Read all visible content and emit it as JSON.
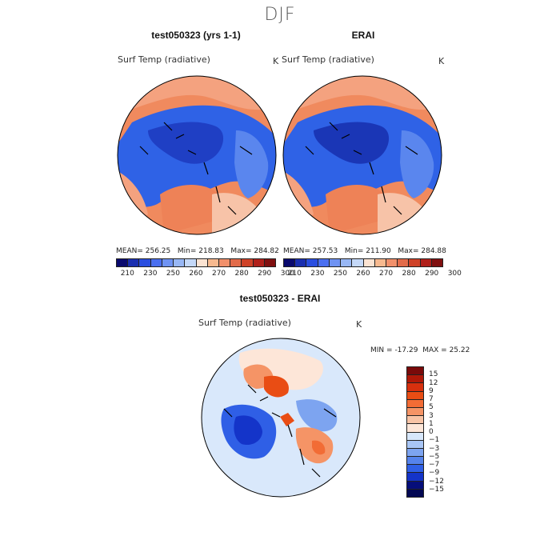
{
  "season": "DJF",
  "panels": [
    {
      "title": "test050323 (yrs 1-1)",
      "variable": "Surf Temp (radiative)",
      "units": "K",
      "mean_label": "MEAN=",
      "mean": "256.25",
      "min_label": "Min=",
      "min": "218.83",
      "max_label": "Max=",
      "max": "284.82"
    },
    {
      "title": "ERAI",
      "variable": "Surf Temp (radiative)",
      "units": "K",
      "mean_label": "MEAN=",
      "mean": "257.53",
      "min_label": "Min=",
      "min": "211.90",
      "max_label": "Max=",
      "max": "284.88"
    }
  ],
  "abs_colorbar": {
    "tick_labels": [
      "210",
      "230",
      "250",
      "260",
      "270",
      "280",
      "290",
      "300"
    ],
    "colors": [
      "#0a0a6e",
      "#1a2fb0",
      "#2a4ee0",
      "#4a6ff0",
      "#6f93f3",
      "#98b7f5",
      "#c4d8f8",
      "#fbe3d2",
      "#f7b98f",
      "#f1906b",
      "#e26b4a",
      "#cf4228",
      "#b0201a",
      "#801010"
    ]
  },
  "diff_panel": {
    "title": "test050323 - ERAI",
    "variable": "Surf Temp (radiative)",
    "units": "K",
    "min_label": "MIN =",
    "min": "-17.29",
    "max_label": "MAX =",
    "max": "25.22",
    "colorbar_labels": [
      "15",
      "12",
      "9",
      "7",
      "5",
      "3",
      "1",
      "0",
      "−1",
      "−3",
      "−5",
      "−7",
      "−9",
      "−12",
      "−15"
    ],
    "colorbar_colors": [
      "#7a0a0a",
      "#b01808",
      "#d7300e",
      "#e94d14",
      "#f26c35",
      "#f59466",
      "#f8c4a6",
      "#fde6d8",
      "#d7e7fb",
      "#a9c6f6",
      "#7da4f0",
      "#5583ec",
      "#2f5fe6",
      "#1434c9",
      "#060e7a",
      "#030853"
    ]
  }
}
